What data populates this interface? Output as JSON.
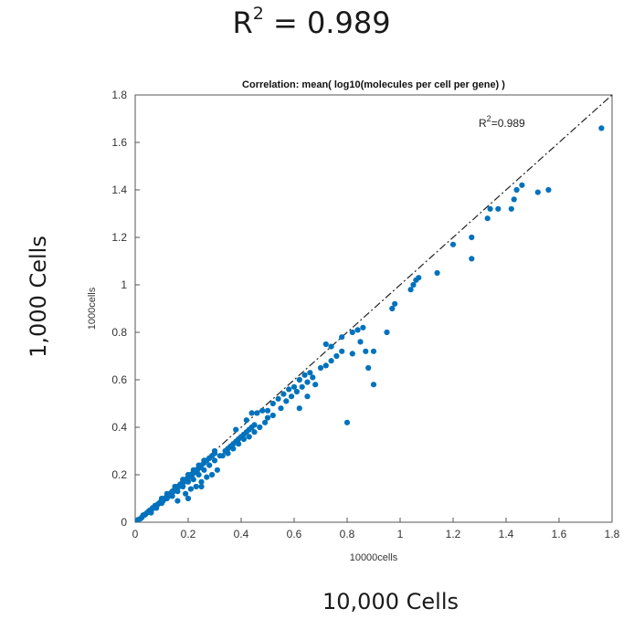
{
  "headline": {
    "r_prefix": "R",
    "superscript": "2",
    "equals_value": " = 0.989"
  },
  "outer_labels": {
    "y": "1,000 Cells",
    "x": "10,000 Cells"
  },
  "chart_data": {
    "type": "scatter",
    "title": "Correlation: mean( log10(molecules per cell per gene) )",
    "xlabel": "10000cells",
    "ylabel": "1000cells",
    "xlim": [
      0,
      1.8
    ],
    "ylim": [
      0,
      1.8
    ],
    "xticks": [
      "0",
      "0.2",
      "0.4",
      "0.6",
      "0.8",
      "1",
      "1.2",
      "1.4",
      "1.6",
      "1.8"
    ],
    "yticks": [
      "0",
      "0.2",
      "0.4",
      "0.6",
      "0.8",
      "1",
      "1.2",
      "1.4",
      "1.6",
      "1.8"
    ],
    "annotation": {
      "r_prefix": "R",
      "superscript": "2",
      "value": "=0.989"
    },
    "reference_line": {
      "style": "dash-dot",
      "color": "#000000",
      "slope": 1,
      "intercept": 0
    },
    "marker_color": "#0072bd",
    "grid": false,
    "points": [
      [
        0.01,
        0.01
      ],
      [
        0.02,
        0.015
      ],
      [
        0.025,
        0.02
      ],
      [
        0.03,
        0.03
      ],
      [
        0.035,
        0.03
      ],
      [
        0.04,
        0.035
      ],
      [
        0.045,
        0.04
      ],
      [
        0.05,
        0.045
      ],
      [
        0.055,
        0.05
      ],
      [
        0.06,
        0.05
      ],
      [
        0.065,
        0.06
      ],
      [
        0.07,
        0.06
      ],
      [
        0.075,
        0.07
      ],
      [
        0.08,
        0.07
      ],
      [
        0.085,
        0.075
      ],
      [
        0.09,
        0.08
      ],
      [
        0.095,
        0.085
      ],
      [
        0.1,
        0.09
      ],
      [
        0.105,
        0.09
      ],
      [
        0.11,
        0.1
      ],
      [
        0.115,
        0.1
      ],
      [
        0.12,
        0.11
      ],
      [
        0.125,
        0.11
      ],
      [
        0.13,
        0.12
      ],
      [
        0.135,
        0.12
      ],
      [
        0.14,
        0.13
      ],
      [
        0.145,
        0.13
      ],
      [
        0.15,
        0.14
      ],
      [
        0.155,
        0.14
      ],
      [
        0.16,
        0.15
      ],
      [
        0.165,
        0.15
      ],
      [
        0.17,
        0.16
      ],
      [
        0.175,
        0.16
      ],
      [
        0.18,
        0.17
      ],
      [
        0.185,
        0.17
      ],
      [
        0.19,
        0.18
      ],
      [
        0.195,
        0.18
      ],
      [
        0.2,
        0.19
      ],
      [
        0.205,
        0.19
      ],
      [
        0.21,
        0.2
      ],
      [
        0.215,
        0.2
      ],
      [
        0.22,
        0.21
      ],
      [
        0.225,
        0.21
      ],
      [
        0.23,
        0.22
      ],
      [
        0.235,
        0.22
      ],
      [
        0.24,
        0.23
      ],
      [
        0.245,
        0.23
      ],
      [
        0.25,
        0.24
      ],
      [
        0.26,
        0.25
      ],
      [
        0.27,
        0.26
      ],
      [
        0.28,
        0.27
      ],
      [
        0.29,
        0.28
      ],
      [
        0.3,
        0.29
      ],
      [
        0.06,
        0.04
      ],
      [
        0.08,
        0.06
      ],
      [
        0.1,
        0.08
      ],
      [
        0.12,
        0.1
      ],
      [
        0.14,
        0.11
      ],
      [
        0.16,
        0.13
      ],
      [
        0.18,
        0.15
      ],
      [
        0.2,
        0.17
      ],
      [
        0.22,
        0.18
      ],
      [
        0.24,
        0.2
      ],
      [
        0.26,
        0.22
      ],
      [
        0.28,
        0.24
      ],
      [
        0.3,
        0.26
      ],
      [
        0.32,
        0.28
      ],
      [
        0.1,
        0.1
      ],
      [
        0.12,
        0.12
      ],
      [
        0.15,
        0.15
      ],
      [
        0.18,
        0.18
      ],
      [
        0.2,
        0.2
      ],
      [
        0.22,
        0.22
      ],
      [
        0.24,
        0.24
      ],
      [
        0.26,
        0.26
      ],
      [
        0.28,
        0.27
      ],
      [
        0.3,
        0.3
      ],
      [
        0.19,
        0.12
      ],
      [
        0.21,
        0.14
      ],
      [
        0.23,
        0.15
      ],
      [
        0.25,
        0.17
      ],
      [
        0.27,
        0.19
      ],
      [
        0.29,
        0.2
      ],
      [
        0.31,
        0.22
      ],
      [
        0.16,
        0.09
      ],
      [
        0.2,
        0.1
      ],
      [
        0.25,
        0.15
      ],
      [
        0.33,
        0.28
      ],
      [
        0.34,
        0.3
      ],
      [
        0.35,
        0.31
      ],
      [
        0.36,
        0.32
      ],
      [
        0.37,
        0.33
      ],
      [
        0.38,
        0.34
      ],
      [
        0.39,
        0.35
      ],
      [
        0.4,
        0.36
      ],
      [
        0.41,
        0.37
      ],
      [
        0.42,
        0.38
      ],
      [
        0.43,
        0.39
      ],
      [
        0.44,
        0.4
      ],
      [
        0.45,
        0.41
      ],
      [
        0.35,
        0.29
      ],
      [
        0.37,
        0.31
      ],
      [
        0.39,
        0.33
      ],
      [
        0.41,
        0.35
      ],
      [
        0.43,
        0.36
      ],
      [
        0.45,
        0.38
      ],
      [
        0.47,
        0.4
      ],
      [
        0.49,
        0.42
      ],
      [
        0.38,
        0.39
      ],
      [
        0.42,
        0.43
      ],
      [
        0.44,
        0.46
      ],
      [
        0.46,
        0.46
      ],
      [
        0.48,
        0.47
      ],
      [
        0.5,
        0.47
      ],
      [
        0.52,
        0.5
      ],
      [
        0.54,
        0.52
      ],
      [
        0.56,
        0.54
      ],
      [
        0.58,
        0.56
      ],
      [
        0.6,
        0.57
      ],
      [
        0.62,
        0.6
      ],
      [
        0.64,
        0.62
      ],
      [
        0.66,
        0.63
      ],
      [
        0.5,
        0.44
      ],
      [
        0.52,
        0.45
      ],
      [
        0.55,
        0.48
      ],
      [
        0.57,
        0.51
      ],
      [
        0.59,
        0.53
      ],
      [
        0.61,
        0.55
      ],
      [
        0.63,
        0.57
      ],
      [
        0.65,
        0.59
      ],
      [
        0.67,
        0.61
      ],
      [
        0.62,
        0.48
      ],
      [
        0.65,
        0.53
      ],
      [
        0.68,
        0.58
      ],
      [
        0.7,
        0.65
      ],
      [
        0.72,
        0.66
      ],
      [
        0.74,
        0.68
      ],
      [
        0.76,
        0.7
      ],
      [
        0.78,
        0.72
      ],
      [
        0.72,
        0.75
      ],
      [
        0.74,
        0.74
      ],
      [
        0.78,
        0.78
      ],
      [
        0.82,
        0.8
      ],
      [
        0.84,
        0.81
      ],
      [
        0.86,
        0.82
      ],
      [
        0.82,
        0.71
      ],
      [
        0.85,
        0.76
      ],
      [
        0.87,
        0.72
      ],
      [
        0.9,
        0.72
      ],
      [
        0.88,
        0.65
      ],
      [
        0.9,
        0.58
      ],
      [
        0.8,
        0.42
      ],
      [
        0.95,
        0.8
      ],
      [
        0.97,
        0.9
      ],
      [
        0.98,
        0.92
      ],
      [
        1.04,
        0.98
      ],
      [
        1.05,
        1.0
      ],
      [
        1.06,
        1.02
      ],
      [
        1.07,
        1.03
      ],
      [
        1.14,
        1.05
      ],
      [
        1.2,
        1.17
      ],
      [
        1.27,
        1.2
      ],
      [
        1.27,
        1.11
      ],
      [
        1.33,
        1.28
      ],
      [
        1.34,
        1.32
      ],
      [
        1.37,
        1.32
      ],
      [
        1.42,
        1.32
      ],
      [
        1.43,
        1.36
      ],
      [
        1.44,
        1.4
      ],
      [
        1.46,
        1.42
      ],
      [
        1.52,
        1.39
      ],
      [
        1.56,
        1.4
      ],
      [
        1.76,
        1.66
      ]
    ]
  }
}
